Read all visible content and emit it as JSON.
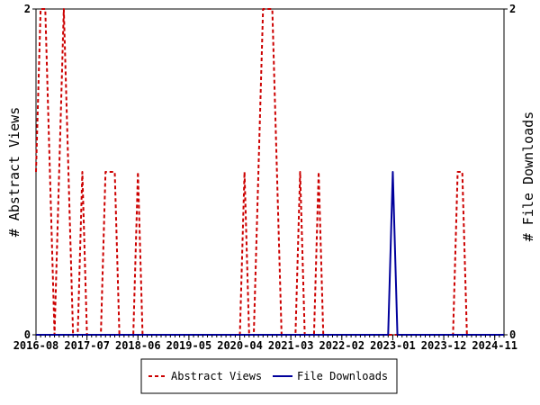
{
  "chart_data": {
    "type": "line",
    "title": "",
    "ylabel_left": "# Abstract Views",
    "ylabel_right": "# File Downloads",
    "ylim_left": [
      0,
      2
    ],
    "ylim_right": [
      0,
      2
    ],
    "left_ticks": [
      "0",
      "2"
    ],
    "right_ticks": [
      "0",
      "2"
    ],
    "x_start": "2016-08",
    "x_months": 102,
    "x_tick_labels": [
      "2016-08",
      "2017-07",
      "2018-06",
      "2019-05",
      "2020-04",
      "2021-03",
      "2022-02",
      "2023-01",
      "2023-12",
      "2024-11"
    ],
    "grid": false,
    "legend_position": "bottom",
    "series": [
      {
        "name": "Abstract Views",
        "axis": "left",
        "style": "dashed",
        "color": "#cc0000",
        "values": [
          1,
          2,
          2,
          1,
          0,
          1,
          2,
          1,
          0,
          0,
          1,
          0,
          0,
          0,
          0,
          1,
          1,
          1,
          0,
          0,
          0,
          0,
          1,
          0,
          0,
          0,
          0,
          0,
          0,
          0,
          0,
          0,
          0,
          0,
          0,
          0,
          0,
          0,
          0,
          0,
          0,
          0,
          0,
          0,
          0,
          1,
          0,
          0,
          1,
          2,
          2,
          2,
          1,
          0,
          0,
          0,
          0,
          1,
          0,
          0,
          0,
          1,
          0,
          0,
          0,
          0,
          0,
          0,
          0,
          0,
          0,
          0,
          0,
          0,
          0,
          0,
          0,
          0,
          0,
          0,
          0,
          0,
          0,
          0,
          0,
          0,
          0,
          0,
          0,
          0,
          0,
          1,
          1,
          0,
          0,
          0,
          0,
          0,
          0,
          0,
          0,
          0
        ]
      },
      {
        "name": "File Downloads",
        "axis": "right",
        "style": "solid",
        "color": "#00009c",
        "values": [
          0,
          0,
          0,
          0,
          0,
          0,
          0,
          0,
          0,
          0,
          0,
          0,
          0,
          0,
          0,
          0,
          0,
          0,
          0,
          0,
          0,
          0,
          0,
          0,
          0,
          0,
          0,
          0,
          0,
          0,
          0,
          0,
          0,
          0,
          0,
          0,
          0,
          0,
          0,
          0,
          0,
          0,
          0,
          0,
          0,
          0,
          0,
          0,
          0,
          0,
          0,
          0,
          0,
          0,
          0,
          0,
          0,
          0,
          0,
          0,
          0,
          0,
          0,
          0,
          0,
          0,
          0,
          0,
          0,
          0,
          0,
          0,
          0,
          0,
          0,
          0,
          0,
          1,
          0,
          0,
          0,
          0,
          0,
          0,
          0,
          0,
          0,
          0,
          0,
          0,
          0,
          0,
          0,
          0,
          0,
          0,
          0,
          0,
          0,
          0,
          0,
          0
        ]
      }
    ]
  }
}
